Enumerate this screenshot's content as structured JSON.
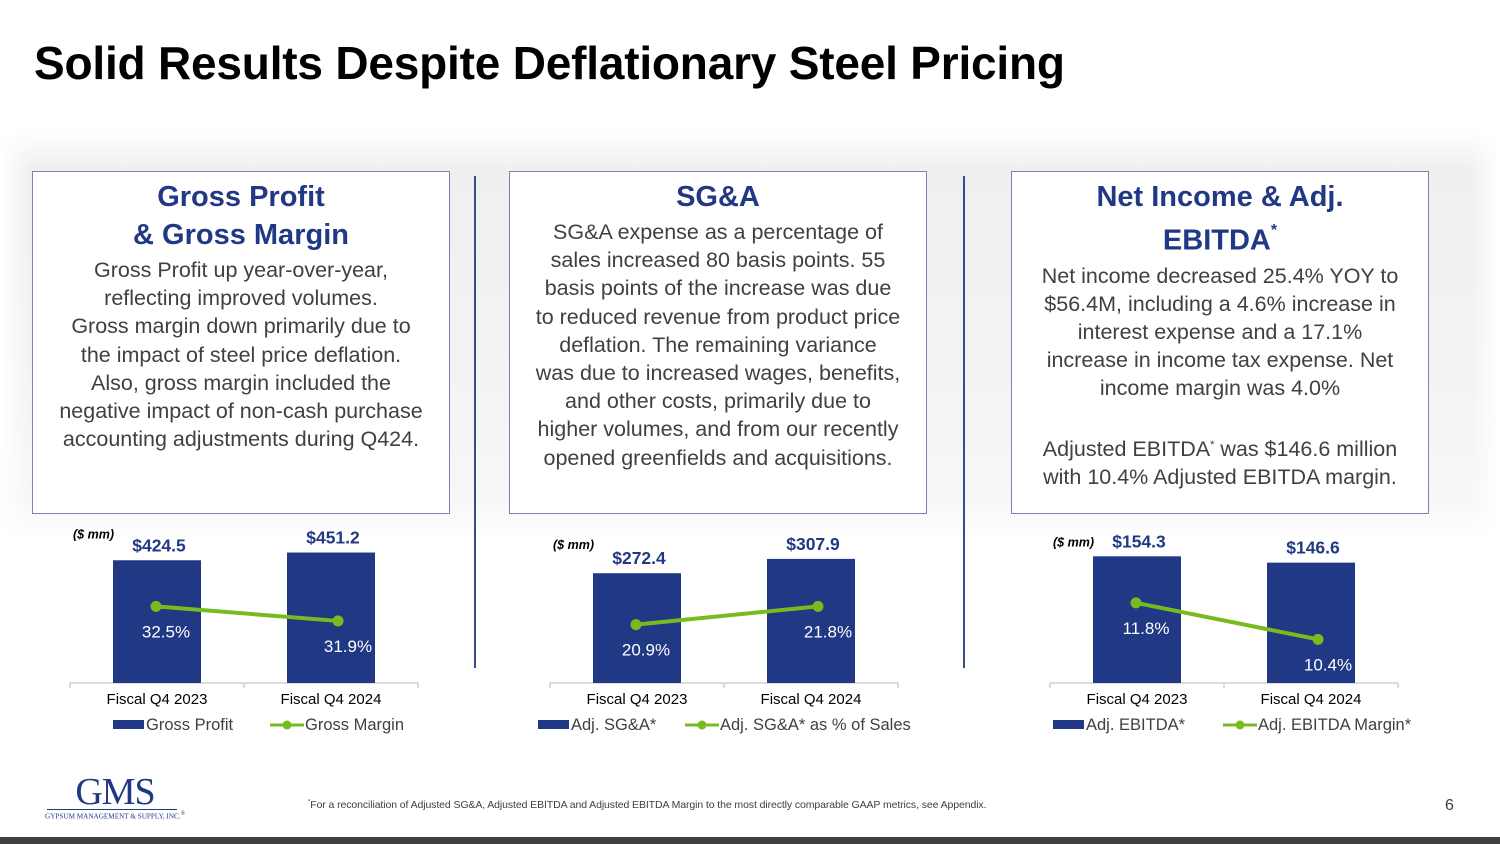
{
  "slide": {
    "title": "Solid Results Despite Deflationary Steel Pricing",
    "page_number": "6",
    "footnote_marker": "*",
    "footnote": "For a reconciliation of Adjusted SG&A, Adjusted EBITDA and Adjusted EBITDA Margin to the most directly comparable GAAP metrics, see Appendix.",
    "logo": {
      "name": "GMS",
      "tagline": "GYPSUM MANAGEMENT & SUPPLY, INC.",
      "registered": "®"
    }
  },
  "colors": {
    "bar": "#213884",
    "line": "#77bc1f",
    "title_blue": "#213884",
    "body_text": "#404040",
    "box_border": "#7583b8"
  },
  "boxes": [
    {
      "title_line1": "Gross Profit",
      "title_line2": "& Gross Margin",
      "body": "Gross Profit up year-over-year,\nreflecting improved volumes.\nGross margin down primarily due to\nthe impact of steel price deflation.\nAlso, gross margin included the\nnegative impact of non-cash purchase\naccounting adjustments during Q424."
    },
    {
      "title_line1": "SG&A",
      "body": "SG&A expense as a percentage of\nsales increased 80 basis points.  55\nbasis points of the increase was due\nto reduced revenue from product price\ndeflation.  The remaining variance\nwas due to increased wages, benefits,\nand other costs, primarily due to\nhigher volumes, and from our recently\nopened greenfields and acquisitions."
    },
    {
      "title_line1": "Net Income & Adj.",
      "title_line2": "EBITDA",
      "title_sup": "*",
      "body_part1": "Net income decreased 25.4% YOY to\n$56.4M, including a 4.6% increase in\ninterest expense and a 17.1%\nincrease in income tax expense.  Net\nincome margin was 4.0%\n\nAdjusted EBITDA",
      "body_sup": "*",
      "body_part2": " was $146.6 million\nwith 10.4% Adjusted EBITDA margin."
    }
  ],
  "chart_data": [
    {
      "type": "bar",
      "title": "Gross Profit & Gross Margin",
      "unit_label": "($ mm)",
      "categories": [
        "Fiscal Q4 2023",
        "Fiscal Q4 2024"
      ],
      "series": [
        {
          "name": "Gross Profit",
          "kind": "bar",
          "values": [
            424.5,
            451.2
          ],
          "labels": [
            "$424.5",
            "$451.2"
          ]
        },
        {
          "name": "Gross Margin",
          "kind": "line",
          "values": [
            32.5,
            31.9
          ],
          "labels": [
            "32.5%",
            "31.9%"
          ]
        }
      ],
      "bar_range": [
        0,
        460
      ],
      "line_range": [
        30.5,
        33.5
      ]
    },
    {
      "type": "bar",
      "title": "SG&A",
      "unit_label": "($ mm)",
      "categories": [
        "Fiscal Q4 2023",
        "Fiscal Q4 2024"
      ],
      "series": [
        {
          "name": "Adj. SG&A*",
          "kind": "bar",
          "values": [
            272.4,
            307.9
          ],
          "labels": [
            "$272.4",
            "$307.9"
          ]
        },
        {
          "name": "Adj. SG&A* as % of Sales",
          "kind": "line",
          "values": [
            20.9,
            21.8
          ],
          "labels": [
            "20.9%",
            "21.8%"
          ]
        }
      ],
      "bar_range": [
        0,
        330
      ],
      "line_range": [
        19.4,
        23.0
      ]
    },
    {
      "type": "bar",
      "title": "Net Income & Adj. EBITDA*",
      "unit_label": "($ mm)",
      "categories": [
        "Fiscal Q4 2023",
        "Fiscal Q4 2024"
      ],
      "series": [
        {
          "name": "Adj. EBITDA*",
          "kind": "bar",
          "values": [
            154.3,
            146.6
          ],
          "labels": [
            "$154.3",
            "$146.6"
          ]
        },
        {
          "name": "Adj. EBITDA Margin*",
          "kind": "line",
          "values": [
            11.8,
            10.4
          ],
          "labels": [
            "11.8%",
            "10.4%"
          ]
        }
      ],
      "bar_range": [
        0,
        162
      ],
      "line_range": [
        9.8,
        12.6
      ]
    }
  ]
}
